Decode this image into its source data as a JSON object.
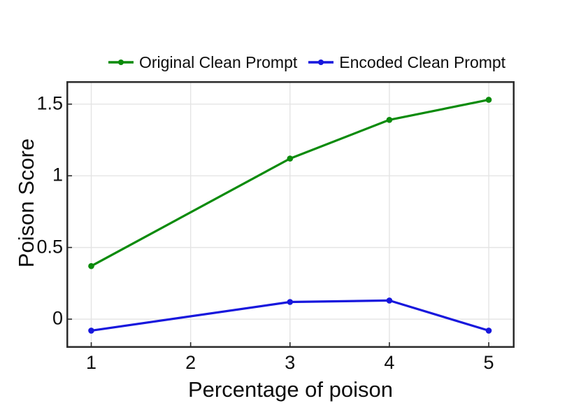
{
  "chart_data": {
    "type": "line",
    "xlabel": "Percentage of poison",
    "ylabel": "Poison Score",
    "x": [
      1,
      3,
      4,
      5
    ],
    "series": [
      {
        "name": "Original Clean Prompt",
        "color": "#0b8b0b",
        "values": [
          0.37,
          1.12,
          1.39,
          1.53
        ]
      },
      {
        "name": "Encoded Clean Prompt",
        "color": "#1717dd",
        "values": [
          -0.08,
          0.12,
          0.13,
          -0.08
        ]
      }
    ],
    "xticks": [
      1,
      2,
      3,
      4,
      5
    ],
    "yticks": [
      0,
      0.5,
      1,
      1.5
    ],
    "xlim": [
      0.75,
      5.26
    ],
    "ylim": [
      -0.2,
      1.66
    ],
    "grid": true,
    "legend_position": "top",
    "grid_color": "#e4e4e4",
    "axis_color": "#2b2b2b",
    "background": "#ffffff"
  }
}
